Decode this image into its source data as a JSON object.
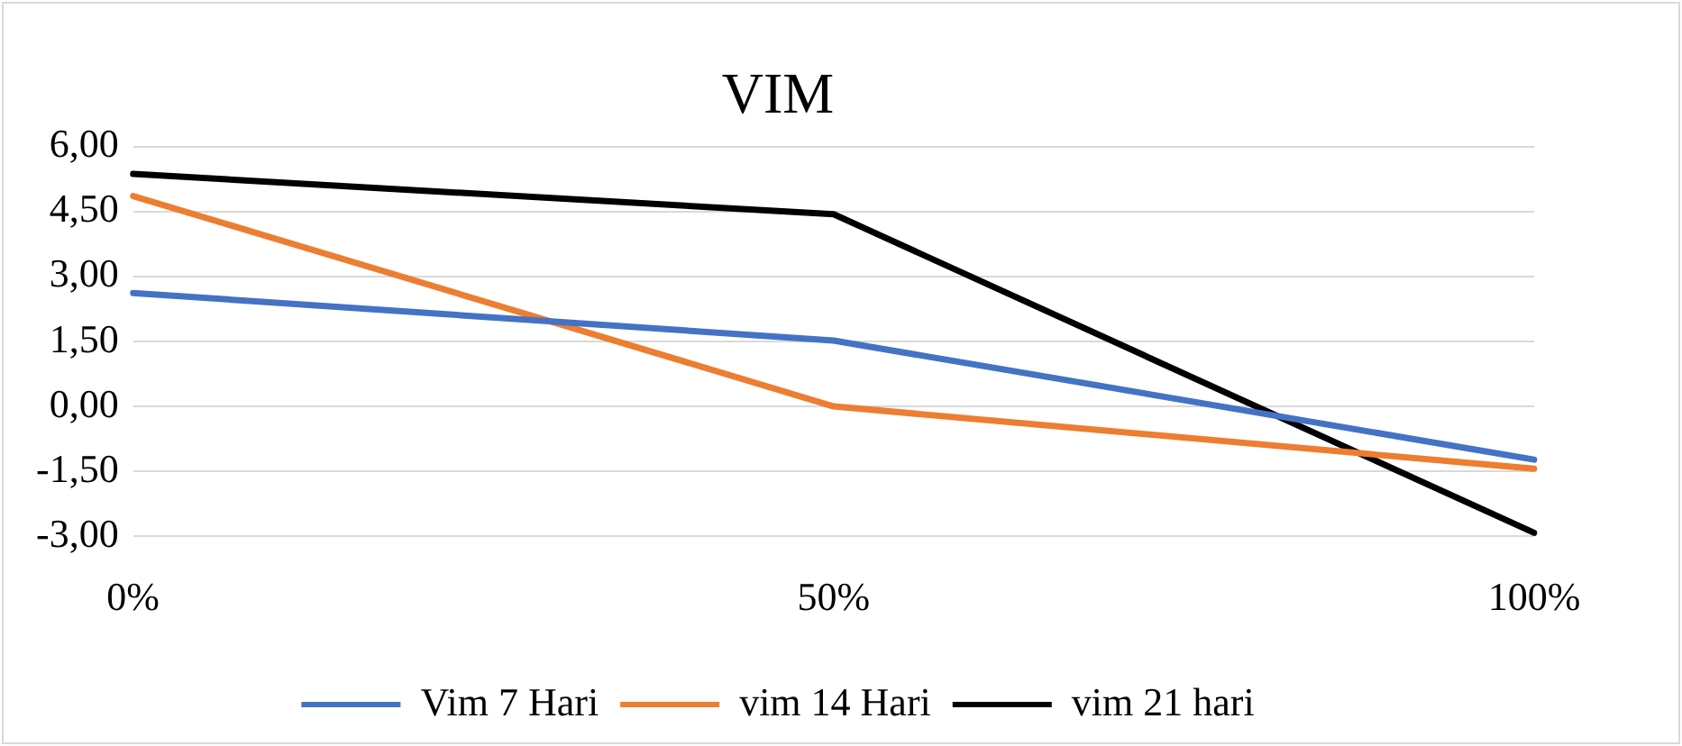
{
  "chart_data": {
    "type": "line",
    "title": "VIM",
    "categories": [
      "0%",
      "50%",
      "100%"
    ],
    "series": [
      {
        "name": "Vim 7 Hari",
        "color": "#4472c4",
        "values": [
          2.62,
          1.52,
          -1.23
        ]
      },
      {
        "name": "vim 14 Hari",
        "color": "#ed7d31",
        "values": [
          4.86,
          0.0,
          -1.44
        ]
      },
      {
        "name": "vim 21 hari",
        "color": "#000000",
        "values": [
          5.37,
          4.44,
          -2.92
        ]
      }
    ],
    "ylim": [
      -3,
      6
    ],
    "yticks": [
      {
        "value": -3,
        "label": "-3,00"
      },
      {
        "value": -1.5,
        "label": "-1,50"
      },
      {
        "value": 0,
        "label": "0,00"
      },
      {
        "value": 1.5,
        "label": "1,50"
      },
      {
        "value": 3,
        "label": "3,00"
      },
      {
        "value": 4.5,
        "label": "4,50"
      },
      {
        "value": 6,
        "label": "6,00"
      }
    ],
    "grid": "y",
    "legend": "bottom",
    "marker": "none",
    "line_style": "solid"
  }
}
